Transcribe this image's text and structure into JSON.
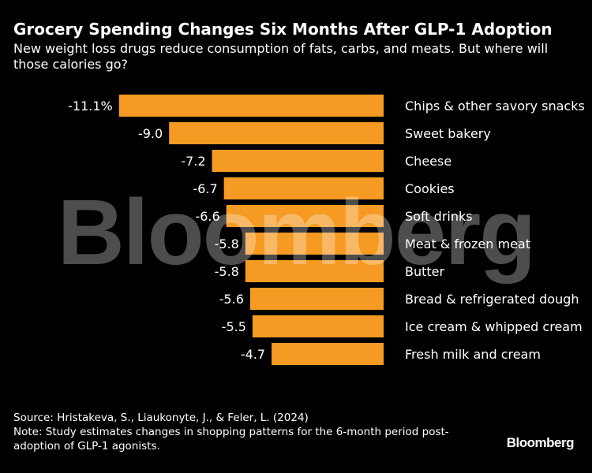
{
  "header": {
    "title": "Grocery Spending Changes Six Months After GLP-1 Adoption",
    "subtitle": "New weight loss drugs reduce consumption of fats, carbs, and meats. But where will those calories go?"
  },
  "chart_data": {
    "type": "bar",
    "orientation": "horizontal",
    "categories": [
      "Chips & other savory snacks",
      "Sweet bakery",
      "Cheese",
      "Cookies",
      "Soft drinks",
      "Meat & frozen meat",
      "Butter",
      "Bread & refrigerated dough",
      "Ice cream & whipped cream",
      "Fresh milk and cream"
    ],
    "values": [
      -11.1,
      -9.0,
      -7.2,
      -6.7,
      -6.6,
      -5.8,
      -5.8,
      -5.6,
      -5.5,
      -4.7
    ],
    "value_labels": [
      "-11.1%",
      "-9.0",
      "-7.2",
      "-6.7",
      "-6.6",
      "-5.8",
      "-5.8",
      "-5.6",
      "-5.5",
      "-4.7"
    ],
    "bar_color": "#f59a23",
    "grid": false
  },
  "watermark": "Bloomberg",
  "footer": {
    "source": "Source: Hristakeva, S., Liaukonyte, J., & Feler, L. (2024)",
    "note": "Note: Study estimates changes in shopping patterns for the 6-month period post-adoption of GLP-1 agonists.",
    "brand": "Bloomberg"
  }
}
